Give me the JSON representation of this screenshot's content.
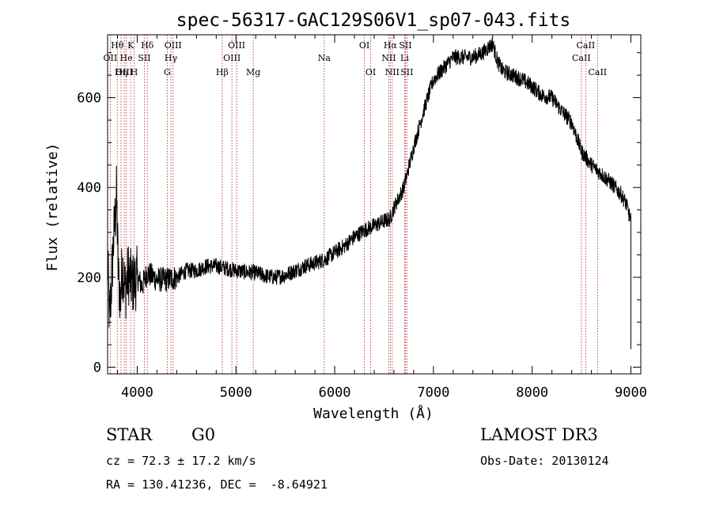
{
  "chart_data": {
    "type": "line",
    "title": "spec-56317-GAC129S06V1_sp07-043.fits",
    "xlabel": "Wavelength (Å)",
    "ylabel": "Flux (relative)",
    "xlim": [
      3700,
      9100
    ],
    "ylim": [
      -15,
      740
    ],
    "xticks": [
      4000,
      5000,
      6000,
      7000,
      8000,
      9000
    ],
    "yticks": [
      0,
      200,
      400,
      600
    ],
    "anchors": [
      [
        3700,
        240
      ],
      [
        3720,
        100
      ],
      [
        3760,
        280
      ],
      [
        3790,
        380
      ],
      [
        3810,
        200
      ],
      [
        3830,
        150
      ],
      [
        3850,
        230
      ],
      [
        3880,
        170
      ],
      [
        3910,
        210
      ],
      [
        3950,
        185
      ],
      [
        4000,
        200
      ],
      [
        4050,
        180
      ],
      [
        4100,
        210
      ],
      [
        4200,
        195
      ],
      [
        4300,
        195
      ],
      [
        4400,
        200
      ],
      [
        4500,
        215
      ],
      [
        4600,
        215
      ],
      [
        4700,
        225
      ],
      [
        4800,
        225
      ],
      [
        4900,
        220
      ],
      [
        5000,
        215
      ],
      [
        5100,
        212
      ],
      [
        5200,
        210
      ],
      [
        5300,
        203
      ],
      [
        5400,
        200
      ],
      [
        5500,
        205
      ],
      [
        5600,
        215
      ],
      [
        5700,
        225
      ],
      [
        5800,
        232
      ],
      [
        5900,
        240
      ],
      [
        6000,
        255
      ],
      [
        6100,
        270
      ],
      [
        6200,
        290
      ],
      [
        6300,
        305
      ],
      [
        6400,
        315
      ],
      [
        6500,
        325
      ],
      [
        6560,
        330
      ],
      [
        6600,
        355
      ],
      [
        6700,
        400
      ],
      [
        6800,
        490
      ],
      [
        6900,
        570
      ],
      [
        7000,
        640
      ],
      [
        7100,
        665
      ],
      [
        7200,
        690
      ],
      [
        7300,
        690
      ],
      [
        7400,
        690
      ],
      [
        7500,
        700
      ],
      [
        7600,
        720
      ],
      [
        7650,
        680
      ],
      [
        7700,
        660
      ],
      [
        7800,
        650
      ],
      [
        7900,
        640
      ],
      [
        8000,
        625
      ],
      [
        8100,
        605
      ],
      [
        8200,
        600
      ],
      [
        8300,
        570
      ],
      [
        8400,
        545
      ],
      [
        8500,
        480
      ],
      [
        8600,
        450
      ],
      [
        8700,
        430
      ],
      [
        8800,
        410
      ],
      [
        8900,
        385
      ],
      [
        8950,
        365
      ],
      [
        9000,
        325
      ]
    ],
    "noise": 18,
    "lines": [
      {
        "label": "OII",
        "x": 3727,
        "row": 1
      },
      {
        "label": "Hθ",
        "x": 3798,
        "row": 0
      },
      {
        "label": "OIII",
        "x": 3869,
        "row": 2
      },
      {
        "label": "He",
        "x": 3889,
        "row": 1
      },
      {
        "label": "K",
        "x": 3934,
        "row": 0
      },
      {
        "label": "Hη",
        "x": 3836,
        "row": 2
      },
      {
        "label": "H",
        "x": 3969,
        "row": 2
      },
      {
        "label": "SII",
        "x": 4072,
        "row": 1
      },
      {
        "label": "Hδ",
        "x": 4102,
        "row": 0
      },
      {
        "label": "G",
        "x": 4304,
        "row": 2
      },
      {
        "label": "Hγ",
        "x": 4341,
        "row": 1
      },
      {
        "label": "OIII",
        "x": 4363,
        "row": 0
      },
      {
        "label": "Hβ",
        "x": 4861,
        "row": 2
      },
      {
        "label": "OIII",
        "x": 4959,
        "row": 1
      },
      {
        "label": "OIII",
        "x": 5007,
        "row": 0
      },
      {
        "label": "Mg",
        "x": 5175,
        "row": 2
      },
      {
        "label": "Na",
        "x": 5894,
        "row": 1
      },
      {
        "label": "OI",
        "x": 6300,
        "row": 0
      },
      {
        "label": "OI",
        "x": 6364,
        "row": 2
      },
      {
        "label": "NII",
        "x": 6548,
        "row": 1
      },
      {
        "label": "Hα",
        "x": 6563,
        "row": 0
      },
      {
        "label": "NII",
        "x": 6583,
        "row": 2
      },
      {
        "label": "Li",
        "x": 6708,
        "row": 1
      },
      {
        "label": "SII",
        "x": 6716,
        "row": 0
      },
      {
        "label": "SII",
        "x": 6731,
        "row": 2
      },
      {
        "label": "CaII",
        "x": 8498,
        "row": 1
      },
      {
        "label": "CaII",
        "x": 8542,
        "row": 0
      },
      {
        "label": "CaII",
        "x": 8662,
        "row": 2
      }
    ]
  },
  "info": {
    "object_class": "STAR",
    "subclass": "G0",
    "survey": "LAMOST DR3",
    "cz": "cz = 72.3 ± 17.2 km/s",
    "obs_date": "Obs-Date: 20130124",
    "coords": "RA = 130.41236, DEC =  -8.64921"
  },
  "colors": {
    "line_marker": "#b22222",
    "spectrum": "#000000"
  }
}
